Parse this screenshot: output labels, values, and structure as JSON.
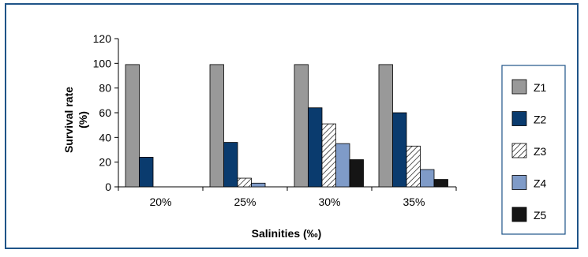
{
  "chart_data": {
    "type": "bar",
    "categories": [
      "20%",
      "25%",
      "30%",
      "35%"
    ],
    "series": [
      {
        "name": "Z1",
        "values": [
          99,
          99,
          99,
          99
        ],
        "color": "#999999",
        "pattern": "solid"
      },
      {
        "name": "Z2",
        "values": [
          24,
          36,
          64,
          60
        ],
        "color": "#0a3b6e",
        "pattern": "solid"
      },
      {
        "name": "Z3",
        "values": [
          0,
          7,
          51,
          33
        ],
        "color": "#ffffff",
        "pattern": "hatch"
      },
      {
        "name": "Z4",
        "values": [
          0,
          3,
          35,
          14
        ],
        "color": "#7f9bc8",
        "pattern": "solid"
      },
      {
        "name": "Z5",
        "values": [
          0,
          0,
          22,
          6
        ],
        "color": "#151515",
        "pattern": "solid"
      }
    ],
    "title": "",
    "xlabel": "Salinities (‰)",
    "ylabel_lines": [
      "Survival rate",
      "(%)"
    ],
    "ylim": [
      0,
      120
    ],
    "yticks": [
      0,
      20,
      40,
      60,
      80,
      100,
      120
    ],
    "grid": false,
    "legend_position": "right"
  },
  "colors": {
    "frame": "#1f5488",
    "axis": "#000000",
    "bar_stroke": "#000000"
  }
}
